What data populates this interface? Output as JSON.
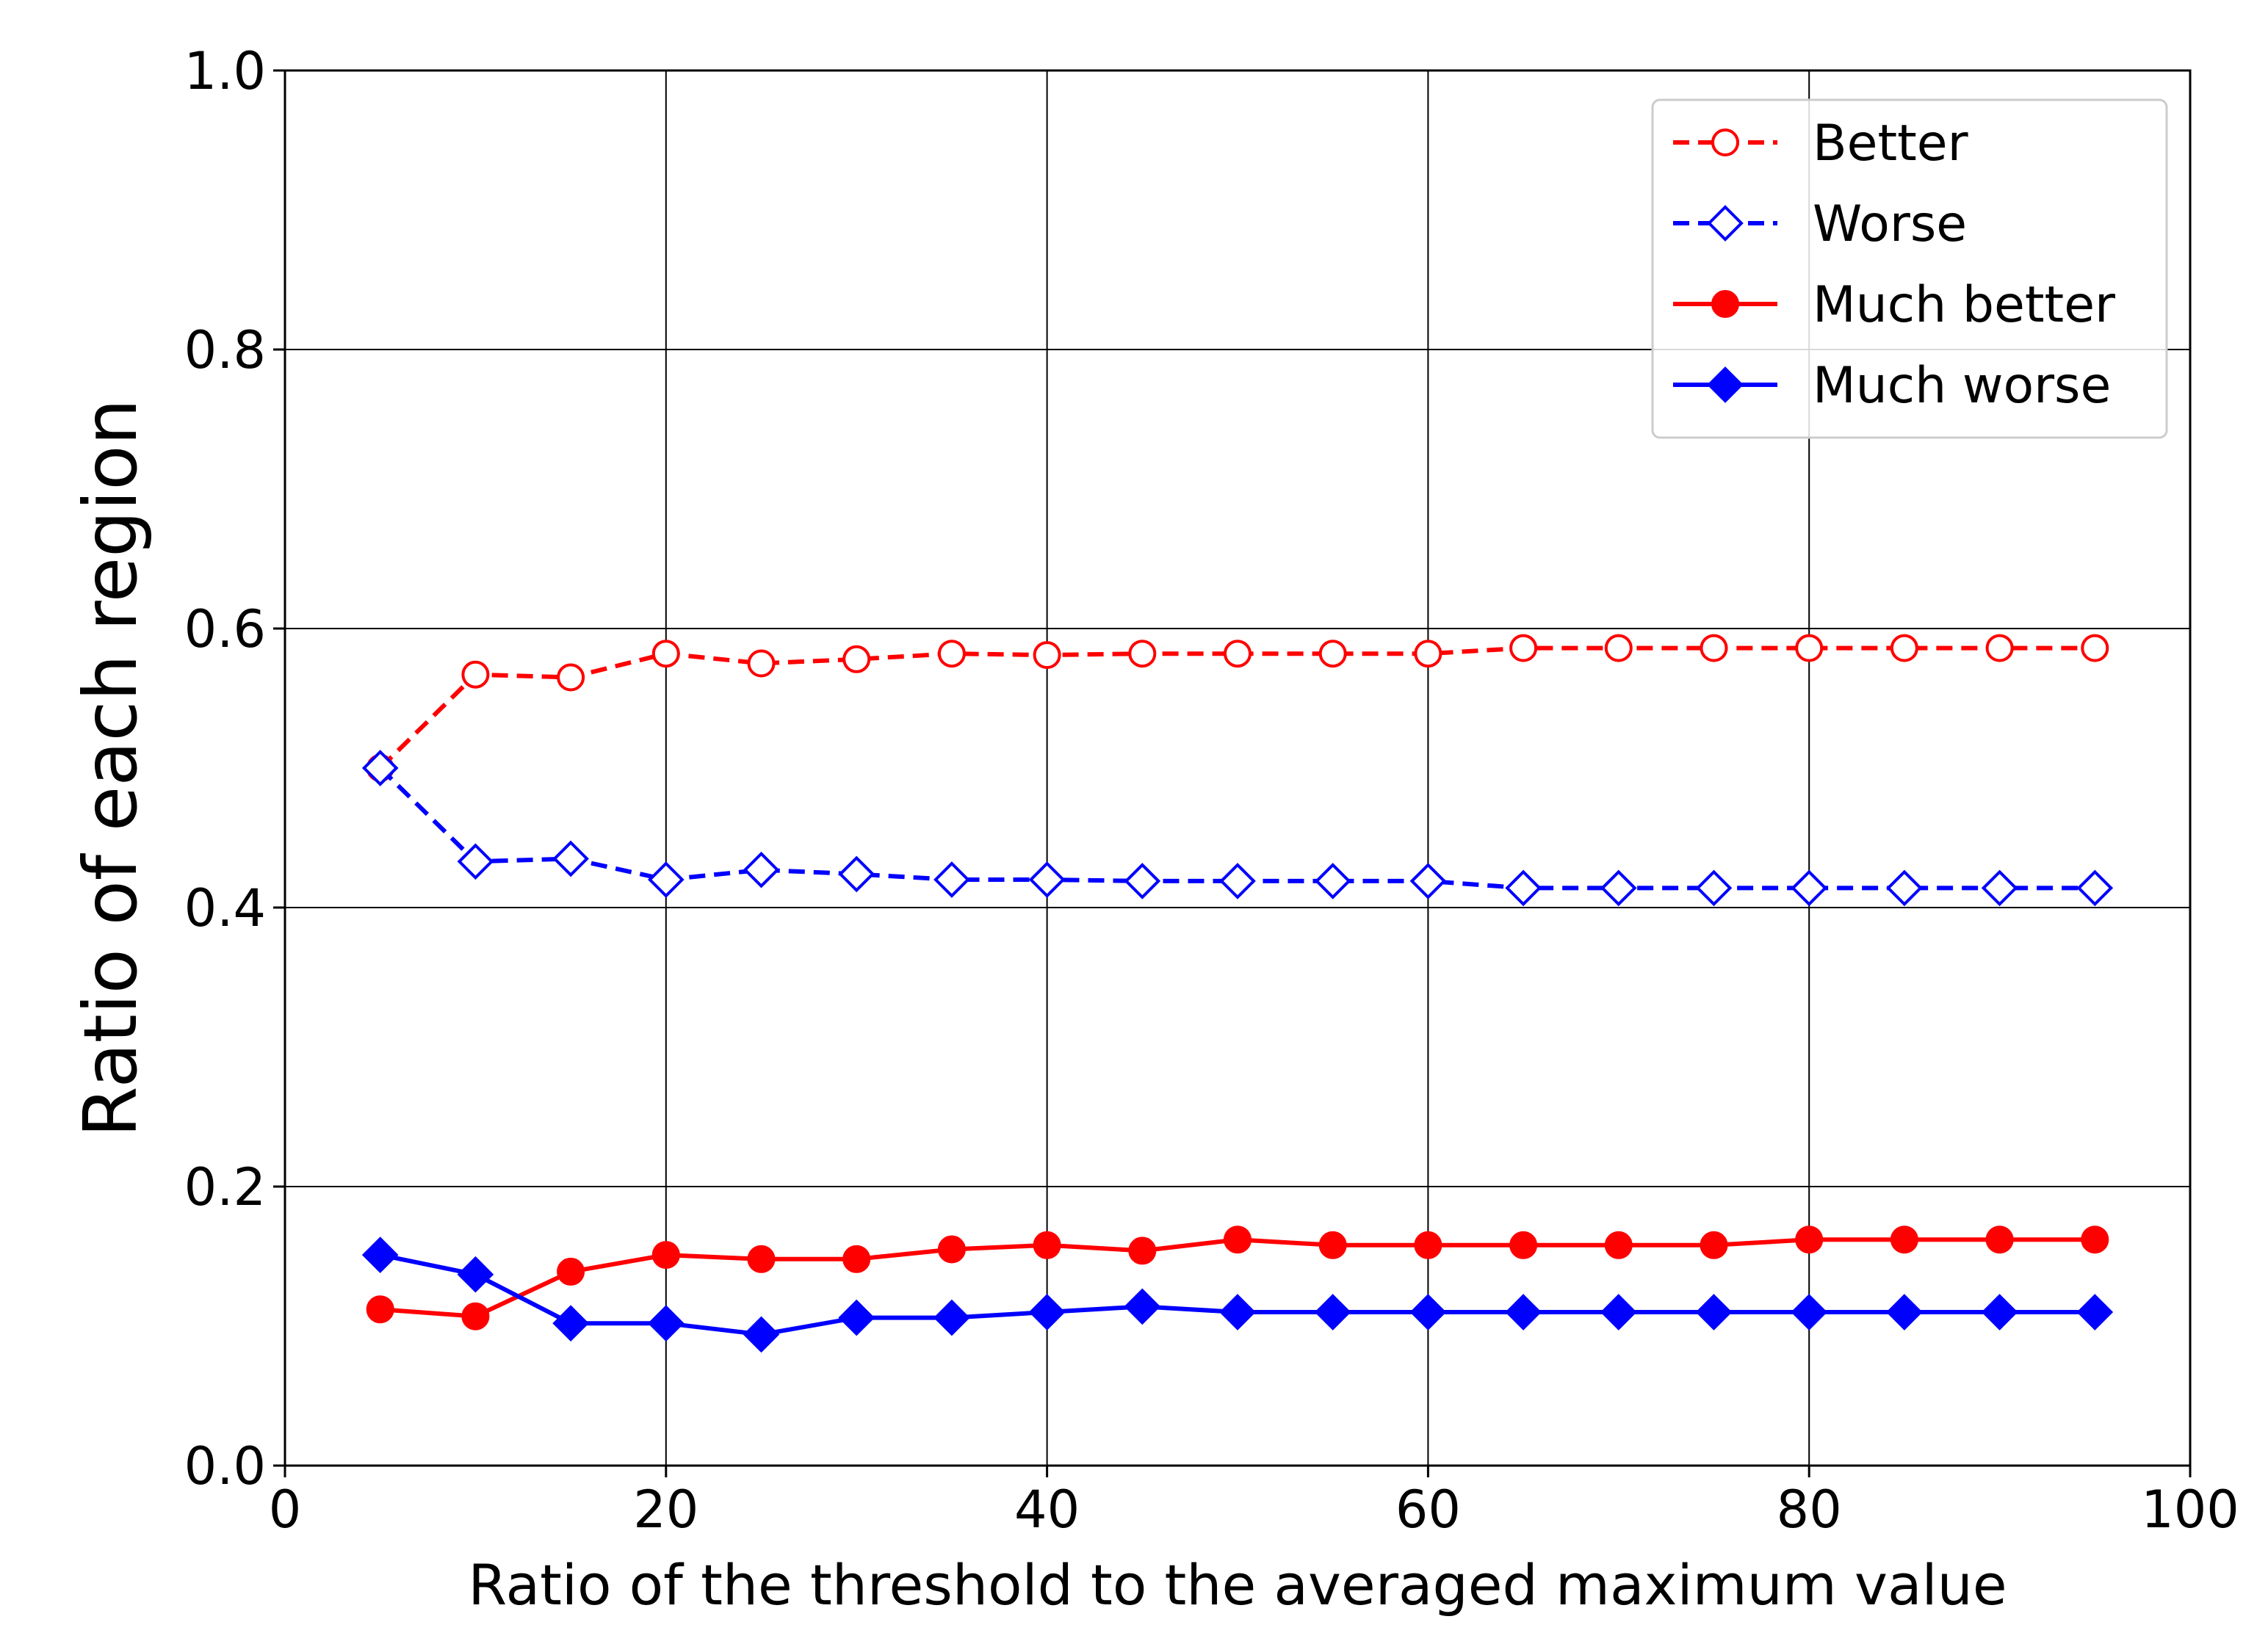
{
  "chart_data": {
    "type": "line",
    "title": "",
    "xlabel": "Ratio of the threshold to the averaged maximum value",
    "ylabel": "Ratio of each region",
    "xlim": [
      0,
      100
    ],
    "ylim": [
      0.0,
      1.0
    ],
    "xticks": [
      0,
      20,
      40,
      60,
      80,
      100
    ],
    "xtick_labels": [
      "0",
      "20",
      "40",
      "60",
      "80",
      "100"
    ],
    "yticks": [
      0.0,
      0.2,
      0.4,
      0.6,
      0.8,
      1.0
    ],
    "ytick_labels": [
      "0.0",
      "0.2",
      "0.4",
      "0.6",
      "0.8",
      "1.0"
    ],
    "grid": true,
    "legend_position": "top-right",
    "x": [
      5,
      10,
      15,
      20,
      25,
      30,
      35,
      40,
      45,
      50,
      55,
      60,
      65,
      70,
      75,
      80,
      85,
      90,
      95
    ],
    "series": [
      {
        "name": "Better",
        "color": "#ff0000",
        "line": "dashed",
        "marker": "circle",
        "filled": false,
        "values": [
          0.5,
          0.567,
          0.565,
          0.582,
          0.575,
          0.578,
          0.582,
          0.581,
          0.582,
          0.582,
          0.582,
          0.582,
          0.586,
          0.586,
          0.586,
          0.586,
          0.586,
          0.586,
          0.586
        ]
      },
      {
        "name": "Worse",
        "color": "#0000ff",
        "line": "dashed",
        "marker": "diamond",
        "filled": false,
        "values": [
          0.5,
          0.433,
          0.435,
          0.42,
          0.427,
          0.424,
          0.42,
          0.42,
          0.419,
          0.419,
          0.419,
          0.419,
          0.414,
          0.414,
          0.414,
          0.414,
          0.414,
          0.414,
          0.414
        ]
      },
      {
        "name": "Much better",
        "color": "#ff0000",
        "line": "solid",
        "marker": "circle",
        "filled": true,
        "values": [
          0.112,
          0.107,
          0.139,
          0.151,
          0.148,
          0.148,
          0.155,
          0.158,
          0.154,
          0.162,
          0.158,
          0.158,
          0.158,
          0.158,
          0.158,
          0.162,
          0.162,
          0.162,
          0.162
        ]
      },
      {
        "name": "Much worse",
        "color": "#0000ff",
        "line": "solid",
        "marker": "diamond",
        "filled": true,
        "values": [
          0.151,
          0.137,
          0.102,
          0.102,
          0.094,
          0.106,
          0.106,
          0.11,
          0.114,
          0.11,
          0.11,
          0.11,
          0.11,
          0.11,
          0.11,
          0.11,
          0.11,
          0.11,
          0.11
        ]
      }
    ]
  }
}
